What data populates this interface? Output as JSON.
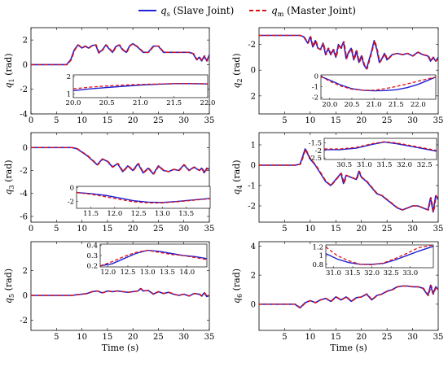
{
  "legend": {
    "placement": "top-center",
    "entries": [
      {
        "symbol": "q",
        "sub": "s",
        "label": "(Slave Joint)",
        "color": "#1f1fd6",
        "dash": "solid"
      },
      {
        "symbol": "q",
        "sub": "m",
        "label": "(Master Joint)",
        "color": "#e01010",
        "dash": "dashed"
      }
    ]
  },
  "colors": {
    "slave": "#1f1fd6",
    "master": "#e01010"
  },
  "chart_data": [
    {
      "type": "line",
      "ylabel_symbol": "q",
      "ylabel_sub": "1",
      "ylabel_unit": "(rad)",
      "xlabel": "",
      "xlim": [
        0,
        35
      ],
      "ylim": [
        -4,
        3
      ],
      "xticks": [
        "0",
        "5",
        "10",
        "15",
        "20",
        "25",
        "30",
        "35"
      ],
      "yticks": [
        "-4",
        "-2",
        "0",
        "2"
      ],
      "series": [
        {
          "x": [
            0,
            7,
            7.8,
            8.5,
            9.2,
            10,
            10.6,
            11.3,
            12,
            12.7,
            13.3,
            14,
            14.7,
            15.3,
            16,
            16.6,
            17.3,
            18,
            18.7,
            19.4,
            20,
            21,
            22,
            23,
            24,
            25,
            26,
            27,
            28,
            29,
            30,
            31,
            31.8,
            32.5,
            33,
            33.5,
            34,
            34.5,
            35
          ],
          "y": [
            0,
            0,
            0.4,
            1.2,
            1.6,
            1.35,
            1.5,
            1.35,
            1.55,
            1.6,
            0.95,
            1.2,
            1.6,
            1.3,
            1.0,
            1.45,
            1.6,
            1.2,
            1.0,
            1.55,
            1.7,
            1.4,
            1.0,
            1.0,
            1.5,
            1.5,
            1.0,
            1.0,
            1.0,
            1.0,
            1.0,
            1.0,
            0.9,
            0.4,
            0.6,
            0.3,
            0.7,
            0.3,
            0.8
          ]
        }
      ],
      "inset": {
        "xlim": [
          20,
          22
        ],
        "ylim": [
          0.8,
          2.1
        ],
        "xticks": [
          "20.0",
          "20.5",
          "21.0",
          "21.5",
          "22.0"
        ],
        "yticks": [
          "1",
          "2"
        ],
        "x": [
          20,
          20.25,
          20.5,
          20.75,
          21,
          21.25,
          21.5,
          21.75,
          22
        ],
        "slave": [
          1.2,
          1.3,
          1.38,
          1.45,
          1.52,
          1.56,
          1.6,
          1.6,
          1.58
        ],
        "master": [
          1.3,
          1.4,
          1.47,
          1.52,
          1.55,
          1.58,
          1.6,
          1.61,
          1.59
        ]
      }
    },
    {
      "type": "line",
      "ylabel_symbol": "q",
      "ylabel_sub": "2",
      "ylabel_unit": "(rad)",
      "xlabel": "",
      "xlim": [
        0,
        35
      ],
      "ylim": [
        -3.3,
        3.4
      ],
      "xticks": [
        "5",
        "10",
        "15",
        "20",
        "25",
        "30",
        "35"
      ],
      "yticks": [
        "-2",
        "0",
        "2"
      ],
      "y_inverted": true,
      "series": [
        {
          "x": [
            0,
            7,
            8,
            8.7,
            9.5,
            10,
            10.5,
            11,
            11.5,
            12,
            12.5,
            13,
            13.5,
            14,
            14.5,
            15,
            15.5,
            16,
            16.5,
            17,
            17.5,
            18,
            18.5,
            19,
            19.5,
            20,
            20.5,
            21,
            21.5,
            22,
            22.5,
            23,
            23.5,
            24,
            24.5,
            25,
            26,
            27,
            28,
            29,
            30,
            31,
            32,
            33,
            33.5,
            34,
            34.5,
            35
          ],
          "y": [
            -2.7,
            -2.7,
            -2.7,
            -2.6,
            -2.1,
            -2.6,
            -1.8,
            -2.3,
            -1.7,
            -1.6,
            -2.1,
            -1.2,
            -1.7,
            -1.2,
            -1.6,
            -1.0,
            -2.0,
            -1.7,
            -2.2,
            -0.9,
            -1.4,
            -1.7,
            -0.8,
            -1.5,
            -0.6,
            -1.1,
            -0.4,
            -0.1,
            -0.8,
            -1.5,
            -2.3,
            -1.6,
            -0.6,
            -0.9,
            -1.3,
            -0.8,
            -1.2,
            -1.3,
            -1.2,
            -1.3,
            -1.1,
            -1.4,
            -1.2,
            -1.1,
            -0.7,
            -1.0,
            -0.7,
            -1.0
          ]
        }
      ],
      "inset": {
        "xlim": [
          19.8,
          22.4
        ],
        "ylim": [
          -2.2,
          0.1
        ],
        "xticks": [
          "20.0",
          "20.5",
          "21.0",
          "21.5",
          "22.0"
        ],
        "yticks": [
          "0",
          "-1",
          "-2"
        ],
        "x": [
          19.8,
          20.0,
          20.25,
          20.5,
          20.75,
          21.0,
          21.25,
          21.5,
          21.75,
          22.0,
          22.2,
          22.4
        ],
        "slave": [
          -0.05,
          -0.4,
          -0.85,
          -1.2,
          -1.35,
          -1.4,
          -1.38,
          -1.3,
          -1.1,
          -0.8,
          -0.45,
          -0.1
        ],
        "master": [
          -0.05,
          -0.5,
          -0.95,
          -1.25,
          -1.35,
          -1.35,
          -1.2,
          -1.0,
          -0.75,
          -0.5,
          -0.3,
          -0.1
        ]
      }
    },
    {
      "type": "line",
      "ylabel_symbol": "q",
      "ylabel_sub": "3",
      "ylabel_unit": "(rad)",
      "xlabel": "",
      "xlim": [
        0,
        35
      ],
      "ylim": [
        -6.5,
        1.3
      ],
      "xticks": [
        "0",
        "5",
        "10",
        "15",
        "20",
        "25",
        "30",
        "35"
      ],
      "yticks": [
        "-6",
        "-4",
        "-2",
        "0"
      ],
      "series": [
        {
          "x": [
            0,
            7,
            8,
            9,
            10,
            11,
            12,
            13,
            14,
            15,
            16,
            17,
            18,
            19,
            20,
            21,
            22,
            23,
            24,
            25,
            26,
            27,
            28,
            29,
            30,
            31,
            32,
            33,
            33.5,
            34,
            34.5,
            35
          ],
          "y": [
            0,
            0,
            0,
            -0.1,
            -0.4,
            -0.7,
            -1.1,
            -1.5,
            -1.0,
            -1.2,
            -1.7,
            -1.4,
            -2.1,
            -1.6,
            -2.0,
            -1.4,
            -2.2,
            -1.8,
            -2.3,
            -1.6,
            -2.0,
            -2.1,
            -1.9,
            -2.0,
            -1.5,
            -2.0,
            -1.7,
            -2.0,
            -1.8,
            -2.2,
            -1.8,
            -1.9
          ]
        }
      ],
      "inset": {
        "xlim": [
          11.2,
          14.0
        ],
        "ylim": [
          -3.0,
          0.2
        ],
        "xticks": [
          "11.5",
          "12.0",
          "12.5",
          "13.0",
          "13.5"
        ],
        "yticks": [
          "0",
          "-2"
        ],
        "x": [
          11.2,
          11.5,
          11.8,
          12.1,
          12.4,
          12.7,
          13.0,
          13.3,
          13.6,
          14.0
        ],
        "slave": [
          -0.7,
          -0.85,
          -1.1,
          -1.5,
          -1.9,
          -2.1,
          -2.15,
          -2.0,
          -1.8,
          -1.55
        ],
        "master": [
          -0.7,
          -0.95,
          -1.3,
          -1.7,
          -2.05,
          -2.2,
          -2.2,
          -2.05,
          -1.85,
          -1.6
        ]
      }
    },
    {
      "type": "line",
      "ylabel_symbol": "q",
      "ylabel_sub": "4",
      "ylabel_unit": "(rad)",
      "xlabel": "",
      "xlim": [
        0,
        35
      ],
      "ylim": [
        -2.8,
        1.6
      ],
      "xticks": [
        "5",
        "10",
        "15",
        "20",
        "25",
        "30",
        "35"
      ],
      "yticks": [
        "-2",
        "-1",
        "0",
        "1"
      ],
      "series": [
        {
          "x": [
            0,
            7,
            8,
            8.5,
            9,
            10,
            11,
            12,
            13,
            14,
            15,
            16,
            16.5,
            17,
            18,
            19,
            19.5,
            20,
            21,
            22,
            23,
            24,
            25,
            26,
            27,
            28,
            29,
            30,
            31,
            32,
            33,
            33.5,
            34,
            34.5,
            35
          ],
          "y": [
            0,
            0,
            0.05,
            0.4,
            0.8,
            0.3,
            0.0,
            -0.4,
            -0.8,
            -1.0,
            -0.7,
            -0.4,
            -0.9,
            -0.5,
            -0.6,
            -0.7,
            -0.3,
            -0.6,
            -0.8,
            -1.1,
            -1.4,
            -1.5,
            -1.7,
            -1.9,
            -2.1,
            -2.2,
            -2.1,
            -2.0,
            -2.0,
            -2.1,
            -2.2,
            -1.6,
            -2.3,
            -1.5,
            -1.7
          ]
        }
      ],
      "inset": {
        "xlim": [
          30.0,
          32.8
        ],
        "ylim": [
          -2.6,
          -1.2
        ],
        "xticks": [
          "30.5",
          "31.0",
          "31.5",
          "32.0",
          "32.5"
        ],
        "yticks": [
          "-1.5",
          "-2",
          "-2.5"
        ],
        "x": [
          30.0,
          30.4,
          30.8,
          31.2,
          31.5,
          31.8,
          32.1,
          32.4,
          32.8
        ],
        "slave": [
          -1.95,
          -1.95,
          -1.85,
          -1.6,
          -1.45,
          -1.55,
          -1.7,
          -1.85,
          -2.05
        ],
        "master": [
          -1.9,
          -1.9,
          -1.8,
          -1.55,
          -1.42,
          -1.5,
          -1.65,
          -1.8,
          -2.0
        ]
      }
    },
    {
      "type": "line",
      "ylabel_symbol": "q",
      "ylabel_sub": "5",
      "ylabel_unit": "(rad)",
      "xlabel": "Time (s)",
      "xlim": [
        0,
        35
      ],
      "ylim": [
        -2.8,
        4.3
      ],
      "xticks": [
        "5",
        "10",
        "15",
        "20",
        "25",
        "30",
        "35"
      ],
      "yticks": [
        "-2",
        "0",
        "2"
      ],
      "series": [
        {
          "x": [
            0,
            7,
            8,
            9,
            10,
            11,
            12,
            13,
            14,
            15,
            16,
            17,
            18,
            19,
            20,
            21,
            21.5,
            22,
            23,
            24,
            25,
            26,
            27,
            28,
            29,
            30,
            31,
            32,
            33,
            33.5,
            34,
            34.5,
            35
          ],
          "y": [
            0,
            0,
            0,
            0.05,
            0.1,
            0.15,
            0.3,
            0.35,
            0.2,
            0.35,
            0.3,
            0.35,
            0.3,
            0.25,
            0.3,
            0.35,
            0.55,
            0.35,
            0.4,
            0.1,
            0.3,
            0.15,
            0.25,
            0.1,
            0.0,
            0.1,
            -0.05,
            0.15,
            0.1,
            -0.05,
            0.2,
            -0.1,
            0.0
          ]
        }
      ],
      "inset": {
        "xlim": [
          11.8,
          14.5
        ],
        "ylim": [
          0.19,
          0.41
        ],
        "xticks": [
          "12.0",
          "12.5",
          "13.0",
          "13.5",
          "14.0"
        ],
        "yticks": [
          "0.4",
          "0.3",
          "0.2"
        ],
        "x": [
          11.8,
          12.1,
          12.4,
          12.7,
          13.0,
          13.3,
          13.6,
          13.9,
          14.2,
          14.5
        ],
        "slave": [
          0.2,
          0.22,
          0.27,
          0.32,
          0.35,
          0.34,
          0.32,
          0.3,
          0.29,
          0.27
        ],
        "master": [
          0.2,
          0.24,
          0.29,
          0.33,
          0.35,
          0.33,
          0.31,
          0.3,
          0.28,
          0.26
        ]
      }
    },
    {
      "type": "line",
      "ylabel_symbol": "q",
      "ylabel_sub": "6",
      "ylabel_unit": "(rad)",
      "xlabel": "Time (s)",
      "xlim": [
        0,
        35
      ],
      "ylim": [
        -1.8,
        4.3
      ],
      "xticks": [
        "5",
        "10",
        "15",
        "20",
        "25",
        "30",
        "35"
      ],
      "yticks": [
        "0",
        "2",
        "4"
      ],
      "series": [
        {
          "x": [
            0,
            6,
            7,
            8,
            9,
            10,
            11,
            12,
            13,
            14,
            15,
            16,
            17,
            18,
            19,
            20,
            21,
            22,
            23,
            24,
            25,
            26,
            27,
            28,
            29,
            30,
            31,
            32,
            33,
            33.5,
            34,
            34.5,
            35
          ],
          "y": [
            0,
            0,
            0,
            -0.25,
            0.1,
            0.25,
            0.1,
            0.3,
            0.4,
            0.2,
            0.5,
            0.3,
            0.5,
            0.2,
            0.45,
            0.5,
            0.7,
            0.3,
            0.6,
            0.7,
            0.9,
            1.0,
            1.2,
            1.25,
            1.25,
            1.2,
            1.2,
            1.1,
            0.6,
            1.3,
            0.7,
            1.2,
            1.0
          ]
        }
      ],
      "inset": {
        "xlim": [
          30.8,
          33.6
        ],
        "ylim": [
          0.72,
          1.25
        ],
        "xticks": [
          "31.0",
          "31.5",
          "32.0",
          "32.5",
          "33.0"
        ],
        "yticks": [
          "1.2",
          "1",
          "0.8"
        ],
        "x": [
          30.8,
          31.1,
          31.4,
          31.7,
          32.0,
          32.3,
          32.6,
          32.9,
          33.2,
          33.6
        ],
        "slave": [
          1.05,
          0.92,
          0.84,
          0.8,
          0.8,
          0.82,
          0.9,
          1.0,
          1.1,
          1.22
        ],
        "master": [
          1.2,
          1.0,
          0.88,
          0.8,
          0.79,
          0.83,
          0.93,
          1.05,
          1.18,
          1.25
        ]
      }
    }
  ]
}
